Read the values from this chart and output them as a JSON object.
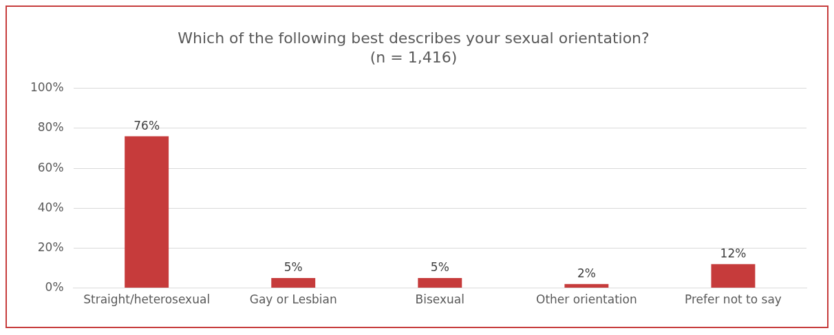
{
  "chart_data": {
    "type": "bar",
    "title": "Which of the following best describes your sexual orientation?",
    "subtitle": "(n = 1,416)",
    "categories": [
      "Straight/heterosexual",
      "Gay or Lesbian",
      "Bisexual",
      "Other orientation",
      "Prefer not to say"
    ],
    "values": [
      76,
      5,
      5,
      2,
      12
    ],
    "value_labels": [
      "76%",
      "5%",
      "5%",
      "2%",
      "12%"
    ],
    "color": "#c63b3b",
    "ylim": [
      0,
      100
    ],
    "yticks": [
      {
        "value": 0,
        "label": "0%"
      },
      {
        "value": 20,
        "label": "20%"
      },
      {
        "value": 40,
        "label": "40%"
      },
      {
        "value": 60,
        "label": "60%"
      },
      {
        "value": 80,
        "label": "80%"
      },
      {
        "value": 100,
        "label": "100%"
      }
    ],
    "grid": "y",
    "legend": false
  }
}
